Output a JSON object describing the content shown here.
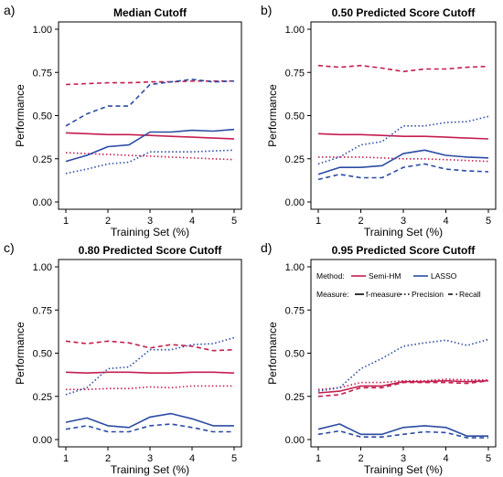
{
  "colors": {
    "semi_hm": "#c41e4f",
    "lasso": "#2b4ba3"
  },
  "chart_data": [
    {
      "type": "line",
      "panel_letter": "a)",
      "title": "Median Cutoff",
      "xlabel": "Training Set (%)",
      "ylabel": "Performance",
      "xlim": [
        1,
        5
      ],
      "ylim": [
        0,
        1
      ],
      "xticks": [
        "1",
        "2",
        "3",
        "4",
        "5"
      ],
      "yticks": [
        "0.00",
        "0.25",
        "0.50",
        "0.75",
        "1.00"
      ],
      "x": [
        1,
        1.5,
        2,
        2.5,
        3,
        3.5,
        4,
        4.5,
        5
      ],
      "series": [
        {
          "method": "Semi-HM",
          "measure": "f-measure",
          "values": [
            0.4,
            0.395,
            0.39,
            0.39,
            0.385,
            0.38,
            0.375,
            0.37,
            0.365
          ]
        },
        {
          "method": "Semi-HM",
          "measure": "Precision",
          "values": [
            0.285,
            0.28,
            0.275,
            0.27,
            0.265,
            0.26,
            0.255,
            0.25,
            0.245
          ]
        },
        {
          "method": "Semi-HM",
          "measure": "Recall",
          "values": [
            0.68,
            0.685,
            0.69,
            0.69,
            0.695,
            0.695,
            0.7,
            0.7,
            0.7
          ]
        },
        {
          "method": "LASSO",
          "measure": "f-measure",
          "values": [
            0.235,
            0.27,
            0.32,
            0.33,
            0.405,
            0.405,
            0.415,
            0.41,
            0.42
          ]
        },
        {
          "method": "LASSO",
          "measure": "Precision",
          "values": [
            0.165,
            0.19,
            0.22,
            0.23,
            0.29,
            0.29,
            0.29,
            0.295,
            0.3
          ]
        },
        {
          "method": "LASSO",
          "measure": "Recall",
          "values": [
            0.44,
            0.51,
            0.555,
            0.555,
            0.68,
            0.695,
            0.71,
            0.695,
            0.7
          ]
        }
      ]
    },
    {
      "type": "line",
      "panel_letter": "b)",
      "title": "0.50 Predicted Score Cutoff",
      "xlabel": "Training Set (%)",
      "ylabel": "Performance",
      "xlim": [
        1,
        5
      ],
      "ylim": [
        0,
        1
      ],
      "xticks": [
        "1",
        "2",
        "3",
        "4",
        "5"
      ],
      "yticks": [
        "0.00",
        "0.25",
        "0.50",
        "0.75",
        "1.00"
      ],
      "x": [
        1,
        1.5,
        2,
        2.5,
        3,
        3.5,
        4,
        4.5,
        5
      ],
      "series": [
        {
          "method": "Semi-HM",
          "measure": "f-measure",
          "values": [
            0.395,
            0.39,
            0.39,
            0.385,
            0.38,
            0.38,
            0.375,
            0.37,
            0.365
          ]
        },
        {
          "method": "Semi-HM",
          "measure": "Precision",
          "values": [
            0.26,
            0.26,
            0.26,
            0.255,
            0.25,
            0.25,
            0.245,
            0.24,
            0.235
          ]
        },
        {
          "method": "Semi-HM",
          "measure": "Recall",
          "values": [
            0.79,
            0.78,
            0.79,
            0.775,
            0.755,
            0.77,
            0.77,
            0.78,
            0.785
          ]
        },
        {
          "method": "LASSO",
          "measure": "f-measure",
          "values": [
            0.16,
            0.2,
            0.2,
            0.21,
            0.28,
            0.3,
            0.27,
            0.26,
            0.255
          ]
        },
        {
          "method": "LASSO",
          "measure": "Precision",
          "values": [
            0.22,
            0.26,
            0.33,
            0.35,
            0.44,
            0.44,
            0.46,
            0.465,
            0.495
          ]
        },
        {
          "method": "LASSO",
          "measure": "Recall",
          "values": [
            0.13,
            0.16,
            0.14,
            0.14,
            0.2,
            0.22,
            0.19,
            0.18,
            0.175
          ]
        }
      ]
    },
    {
      "type": "line",
      "panel_letter": "c)",
      "title": "0.80 Predicted Score Cutoff",
      "xlabel": "Training Set (%)",
      "ylabel": "Performance",
      "xlim": [
        1,
        5
      ],
      "ylim": [
        0,
        1
      ],
      "xticks": [
        "1",
        "2",
        "3",
        "4",
        "5"
      ],
      "yticks": [
        "0.00",
        "0.25",
        "0.50",
        "0.75",
        "1.00"
      ],
      "x": [
        1,
        1.5,
        2,
        2.5,
        3,
        3.5,
        4,
        4.5,
        5
      ],
      "series": [
        {
          "method": "Semi-HM",
          "measure": "f-measure",
          "values": [
            0.39,
            0.385,
            0.39,
            0.39,
            0.385,
            0.385,
            0.39,
            0.39,
            0.385
          ]
        },
        {
          "method": "Semi-HM",
          "measure": "Precision",
          "values": [
            0.29,
            0.29,
            0.295,
            0.295,
            0.305,
            0.3,
            0.31,
            0.31,
            0.31
          ]
        },
        {
          "method": "Semi-HM",
          "measure": "Recall",
          "values": [
            0.57,
            0.555,
            0.57,
            0.56,
            0.53,
            0.55,
            0.54,
            0.515,
            0.52
          ]
        },
        {
          "method": "LASSO",
          "measure": "f-measure",
          "values": [
            0.1,
            0.125,
            0.08,
            0.07,
            0.13,
            0.15,
            0.12,
            0.08,
            0.08
          ]
        },
        {
          "method": "LASSO",
          "measure": "Precision",
          "values": [
            0.26,
            0.3,
            0.41,
            0.42,
            0.52,
            0.52,
            0.55,
            0.555,
            0.59
          ]
        },
        {
          "method": "LASSO",
          "measure": "Recall",
          "values": [
            0.06,
            0.08,
            0.045,
            0.045,
            0.08,
            0.09,
            0.07,
            0.045,
            0.045
          ]
        }
      ]
    },
    {
      "type": "line",
      "panel_letter": "d)",
      "title": "0.95 Predicted Score Cutoff",
      "xlabel": "Training Set (%)",
      "ylabel": "Performance",
      "xlim": [
        1,
        5
      ],
      "ylim": [
        0,
        1
      ],
      "xticks": [
        "1",
        "2",
        "3",
        "4",
        "5"
      ],
      "yticks": [
        "0.00",
        "0.25",
        "0.50",
        "0.75",
        "1.00"
      ],
      "x": [
        1,
        1.5,
        2,
        2.5,
        3,
        3.5,
        4,
        4.5,
        5
      ],
      "series": [
        {
          "method": "Semi-HM",
          "measure": "f-measure",
          "values": [
            0.27,
            0.28,
            0.31,
            0.31,
            0.335,
            0.335,
            0.34,
            0.335,
            0.34
          ]
        },
        {
          "method": "Semi-HM",
          "measure": "Precision",
          "values": [
            0.29,
            0.3,
            0.33,
            0.33,
            0.34,
            0.34,
            0.35,
            0.345,
            0.345
          ]
        },
        {
          "method": "Semi-HM",
          "measure": "Recall",
          "values": [
            0.25,
            0.26,
            0.3,
            0.3,
            0.33,
            0.33,
            0.33,
            0.325,
            0.34
          ]
        },
        {
          "method": "LASSO",
          "measure": "f-measure",
          "values": [
            0.06,
            0.09,
            0.03,
            0.03,
            0.07,
            0.08,
            0.07,
            0.02,
            0.02
          ]
        },
        {
          "method": "LASSO",
          "measure": "Precision",
          "values": [
            0.28,
            0.3,
            0.41,
            0.47,
            0.54,
            0.56,
            0.575,
            0.545,
            0.58
          ]
        },
        {
          "method": "LASSO",
          "measure": "Recall",
          "values": [
            0.03,
            0.05,
            0.015,
            0.015,
            0.03,
            0.045,
            0.04,
            0.01,
            0.01
          ]
        }
      ],
      "legend": {
        "method_label": "Method:",
        "methods": [
          "Semi-HM",
          "LASSO"
        ],
        "measure_label": "Measure:",
        "measures": [
          "f-measure",
          "Precision",
          "Recall"
        ]
      }
    }
  ]
}
